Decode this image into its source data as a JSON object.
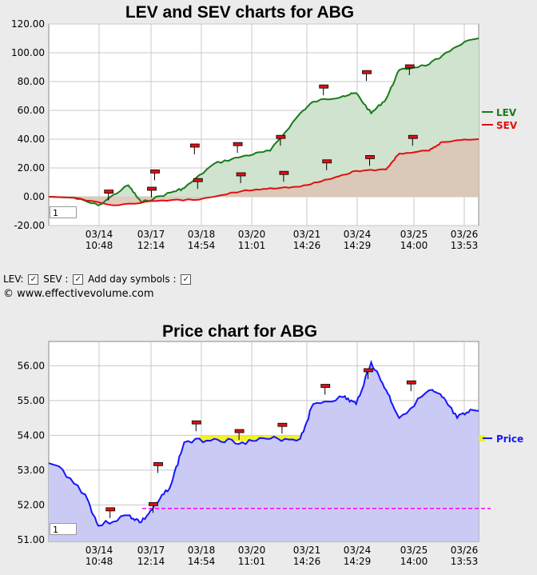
{
  "chart_data": [
    {
      "type": "line",
      "title": "LEV and SEV charts for ABG",
      "x_tick_labels": [
        {
          "date": "03/14",
          "time": "10:48"
        },
        {
          "date": "03/17",
          "time": "12:14"
        },
        {
          "date": "03/18",
          "time": "14:54"
        },
        {
          "date": "03/20",
          "time": "11:01"
        },
        {
          "date": "03/21",
          "time": "14:26"
        },
        {
          "date": "03/24",
          "time": "14:29"
        },
        {
          "date": "03/25",
          "time": "14:00"
        },
        {
          "date": "03/26",
          "time": "13:53"
        }
      ],
      "y_tick_labels": [
        "120.00",
        "100.00",
        "80.00",
        "60.00",
        "40.00",
        "20.00",
        "0.00",
        "-20.00"
      ],
      "ylim": [
        -20,
        120
      ],
      "grid": true,
      "legend_position": "right",
      "series": [
        {
          "name": "LEV",
          "color": "#1a7a1a",
          "x": [
            "03/13",
            "03/14",
            "03/14",
            "03/17",
            "03/17",
            "03/18",
            "03/18",
            "03/19",
            "03/20",
            "03/20",
            "03/21",
            "03/21",
            "03/24",
            "03/24",
            "03/24",
            "03/25",
            "03/25",
            "03/26",
            "03/26"
          ],
          "values": [
            0,
            -6,
            8,
            -4,
            3,
            6,
            23,
            28,
            32,
            58,
            66,
            70,
            72,
            58,
            68,
            88,
            92,
            98,
            110
          ]
        },
        {
          "name": "SEV",
          "color": "#e01010",
          "x": [
            "03/13",
            "03/14",
            "03/17",
            "03/18",
            "03/19",
            "03/20",
            "03/20",
            "03/21",
            "03/24",
            "03/24",
            "03/25",
            "03/25",
            "03/26",
            "03/26"
          ],
          "values": [
            0,
            -6,
            -3,
            -2,
            4,
            6,
            7,
            12,
            18,
            19,
            30,
            32,
            38,
            40
          ]
        }
      ],
      "day_markers": [
        {
          "x": "03/14",
          "y": 3
        },
        {
          "x": "03/17",
          "y": 5
        },
        {
          "x": "03/17",
          "y": 17
        },
        {
          "x": "03/18",
          "y": 35
        },
        {
          "x": "03/18",
          "y": 11
        },
        {
          "x": "03/19",
          "y": 36
        },
        {
          "x": "03/19",
          "y": 15
        },
        {
          "x": "03/20",
          "y": 41
        },
        {
          "x": "03/20",
          "y": 16
        },
        {
          "x": "03/21",
          "y": 76
        },
        {
          "x": "03/21",
          "y": 24
        },
        {
          "x": "03/24",
          "y": 86
        },
        {
          "x": "03/24",
          "y": 27
        },
        {
          "x": "03/25",
          "y": 90
        },
        {
          "x": "03/25",
          "y": 41
        }
      ]
    },
    {
      "type": "line",
      "title": "Price chart for ABG",
      "x_tick_labels": [
        {
          "date": "03/14",
          "time": "10:48"
        },
        {
          "date": "03/17",
          "time": "12:14"
        },
        {
          "date": "03/18",
          "time": "14:54"
        },
        {
          "date": "03/20",
          "time": "11:01"
        },
        {
          "date": "03/21",
          "time": "14:26"
        },
        {
          "date": "03/24",
          "time": "14:29"
        },
        {
          "date": "03/25",
          "time": "14:00"
        },
        {
          "date": "03/26",
          "time": "13:53"
        }
      ],
      "y_tick_labels": [
        "56.00",
        "55.00",
        "54.00",
        "53.00",
        "52.00",
        "51.00"
      ],
      "ylim": [
        50.95,
        56.7
      ],
      "grid": true,
      "series": [
        {
          "name": "Price",
          "color": "#1515ff",
          "x": [
            "03/13",
            "03/13",
            "03/14",
            "03/14",
            "03/17",
            "03/17",
            "03/17",
            "03/18",
            "03/18",
            "03/19",
            "03/20",
            "03/20",
            "03/21",
            "03/21",
            "03/24",
            "03/24",
            "03/24",
            "03/25",
            "03/25",
            "03/26",
            "03/26",
            "03/26"
          ],
          "values": [
            53.2,
            52.3,
            51.4,
            51.7,
            51.5,
            52.0,
            52.6,
            53.8,
            53.9,
            53.8,
            53.9,
            53.9,
            54.9,
            55.1,
            54.9,
            56.1,
            55.3,
            54.5,
            55.3,
            55.1,
            54.5,
            54.7
          ]
        }
      ],
      "support_band": {
        "low": 53.83,
        "high": 54.0,
        "color": "#f0f000"
      },
      "reference_line": {
        "value": 51.9,
        "color": "#ff00ff",
        "style": "dashed"
      },
      "day_markers": [
        {
          "x": "03/14",
          "y": 51.85
        },
        {
          "x": "03/17",
          "y": 52.0
        },
        {
          "x": "03/17",
          "y": 53.15
        },
        {
          "x": "03/18",
          "y": 54.35
        },
        {
          "x": "03/19",
          "y": 54.1
        },
        {
          "x": "03/20",
          "y": 54.28
        },
        {
          "x": "03/21",
          "y": 55.4
        },
        {
          "x": "03/24",
          "y": 55.85
        },
        {
          "x": "03/25",
          "y": 55.5
        }
      ]
    }
  ],
  "ui": {
    "controls": {
      "lev": "LEV:",
      "sev": "SEV :",
      "day": "Add day symbols :"
    },
    "copyright": "© www.effectivevolume.com",
    "top_page": "1",
    "bottom_page": "1",
    "check": "✓"
  },
  "colors": {
    "lev_fill": "#cfe3cf",
    "sev_fill": "#dcc3b4",
    "price_fill": "#cacaf5",
    "plot_bg": "#ffffff",
    "marker": "#e01010"
  }
}
